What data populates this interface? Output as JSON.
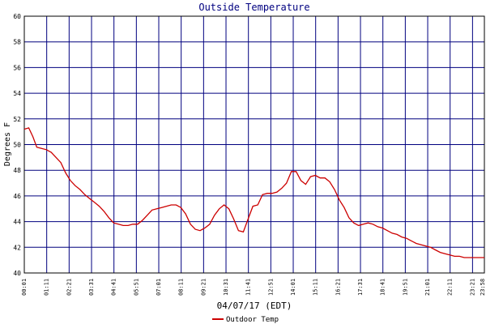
{
  "chart_data": {
    "type": "line",
    "title": "Outside Temperature",
    "xlabel": "04/07/17 (EDT)",
    "ylabel": "Degrees F",
    "ylim": [
      40,
      60
    ],
    "yticks": [
      40,
      42,
      44,
      46,
      48,
      50,
      52,
      54,
      56,
      58,
      60
    ],
    "xticks": [
      "00:01",
      "01:11",
      "02:21",
      "03:31",
      "04:41",
      "05:51",
      "07:01",
      "08:11",
      "09:21",
      "10:31",
      "11:41",
      "12:51",
      "14:01",
      "15:11",
      "16:21",
      "17:31",
      "18:41",
      "19:51",
      "21:01",
      "22:11",
      "23:21"
    ],
    "xlim_minutes": [
      1,
      1438
    ],
    "last_tick_label": "23:58",
    "grid": true,
    "legend_position": "bottom-center",
    "colors": {
      "series": "#cc0000",
      "grid": "#00007f",
      "frame": "#000000",
      "text": "#000080"
    },
    "series": [
      {
        "name": "Outdoor Temp",
        "time_minutes": [
          1,
          15,
          28,
          40,
          55,
          70,
          85,
          100,
          115,
          130,
          145,
          160,
          175,
          190,
          205,
          220,
          235,
          250,
          265,
          280,
          295,
          310,
          325,
          340,
          355,
          370,
          385,
          400,
          415,
          430,
          445,
          460,
          475,
          490,
          505,
          520,
          535,
          550,
          565,
          580,
          595,
          610,
          625,
          640,
          655,
          670,
          685,
          700,
          715,
          730,
          745,
          760,
          775,
          790,
          805,
          820,
          835,
          850,
          865,
          880,
          895,
          910,
          925,
          940,
          955,
          970,
          985,
          1000,
          1015,
          1030,
          1045,
          1060,
          1075,
          1090,
          1105,
          1120,
          1135,
          1150,
          1165,
          1180,
          1195,
          1210,
          1225,
          1240,
          1255,
          1270,
          1285,
          1300,
          1315,
          1330,
          1345,
          1360,
          1375,
          1390,
          1405,
          1420,
          1438
        ],
        "values": [
          51.2,
          51.3,
          50.6,
          49.8,
          49.7,
          49.6,
          49.4,
          49.0,
          48.6,
          47.8,
          47.2,
          46.8,
          46.5,
          46.1,
          45.8,
          45.5,
          45.2,
          44.8,
          44.3,
          43.9,
          43.8,
          43.7,
          43.7,
          43.8,
          43.8,
          44.1,
          44.5,
          44.9,
          45.0,
          45.1,
          45.2,
          45.3,
          45.3,
          45.1,
          44.6,
          43.8,
          43.4,
          43.3,
          43.5,
          43.8,
          44.5,
          45.0,
          45.3,
          45.0,
          44.2,
          43.3,
          43.2,
          44.2,
          45.2,
          45.3,
          46.1,
          46.2,
          46.2,
          46.3,
          46.6,
          47.0,
          47.9,
          47.9,
          47.2,
          46.9,
          47.5,
          47.6,
          47.4,
          47.4,
          47.1,
          46.5,
          45.7,
          45.1,
          44.3,
          43.9,
          43.7,
          43.8,
          43.9,
          43.8,
          43.6,
          43.5,
          43.3,
          43.1,
          43.0,
          42.8,
          42.7,
          42.5,
          42.3,
          42.2,
          42.1,
          42.0,
          41.8,
          41.6,
          41.5,
          41.4,
          41.3,
          41.3,
          41.2,
          41.2,
          41.2,
          41.2,
          41.2
        ]
      }
    ]
  }
}
